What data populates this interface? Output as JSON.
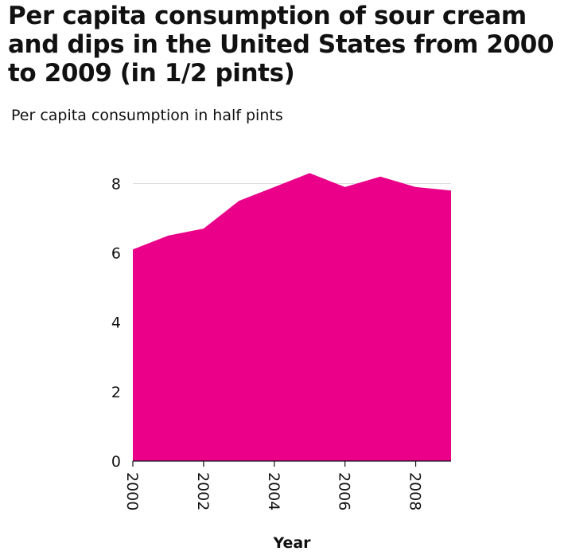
{
  "chart_data": {
    "type": "area",
    "title": "Per capita consumption of sour cream and dips in the United States from 2000 to 2009 (in 1/2 pints)",
    "ylabel": "Per capita consumption in half pints",
    "xlabel": "Year",
    "x": [
      2000,
      2001,
      2002,
      2003,
      2004,
      2005,
      2006,
      2007,
      2008,
      2009
    ],
    "values": [
      6.1,
      6.5,
      6.7,
      7.5,
      7.9,
      8.3,
      7.9,
      8.2,
      7.9,
      7.8
    ],
    "xlim": [
      2000,
      2009
    ],
    "ylim": [
      0,
      8.7
    ],
    "x_ticks": [
      2000,
      2002,
      2004,
      2006,
      2008
    ],
    "y_ticks": [
      0,
      2,
      4,
      6,
      8
    ],
    "gridlines": "horizontal",
    "fill_color": "#ea0089",
    "grid_color": "#dddddd"
  }
}
